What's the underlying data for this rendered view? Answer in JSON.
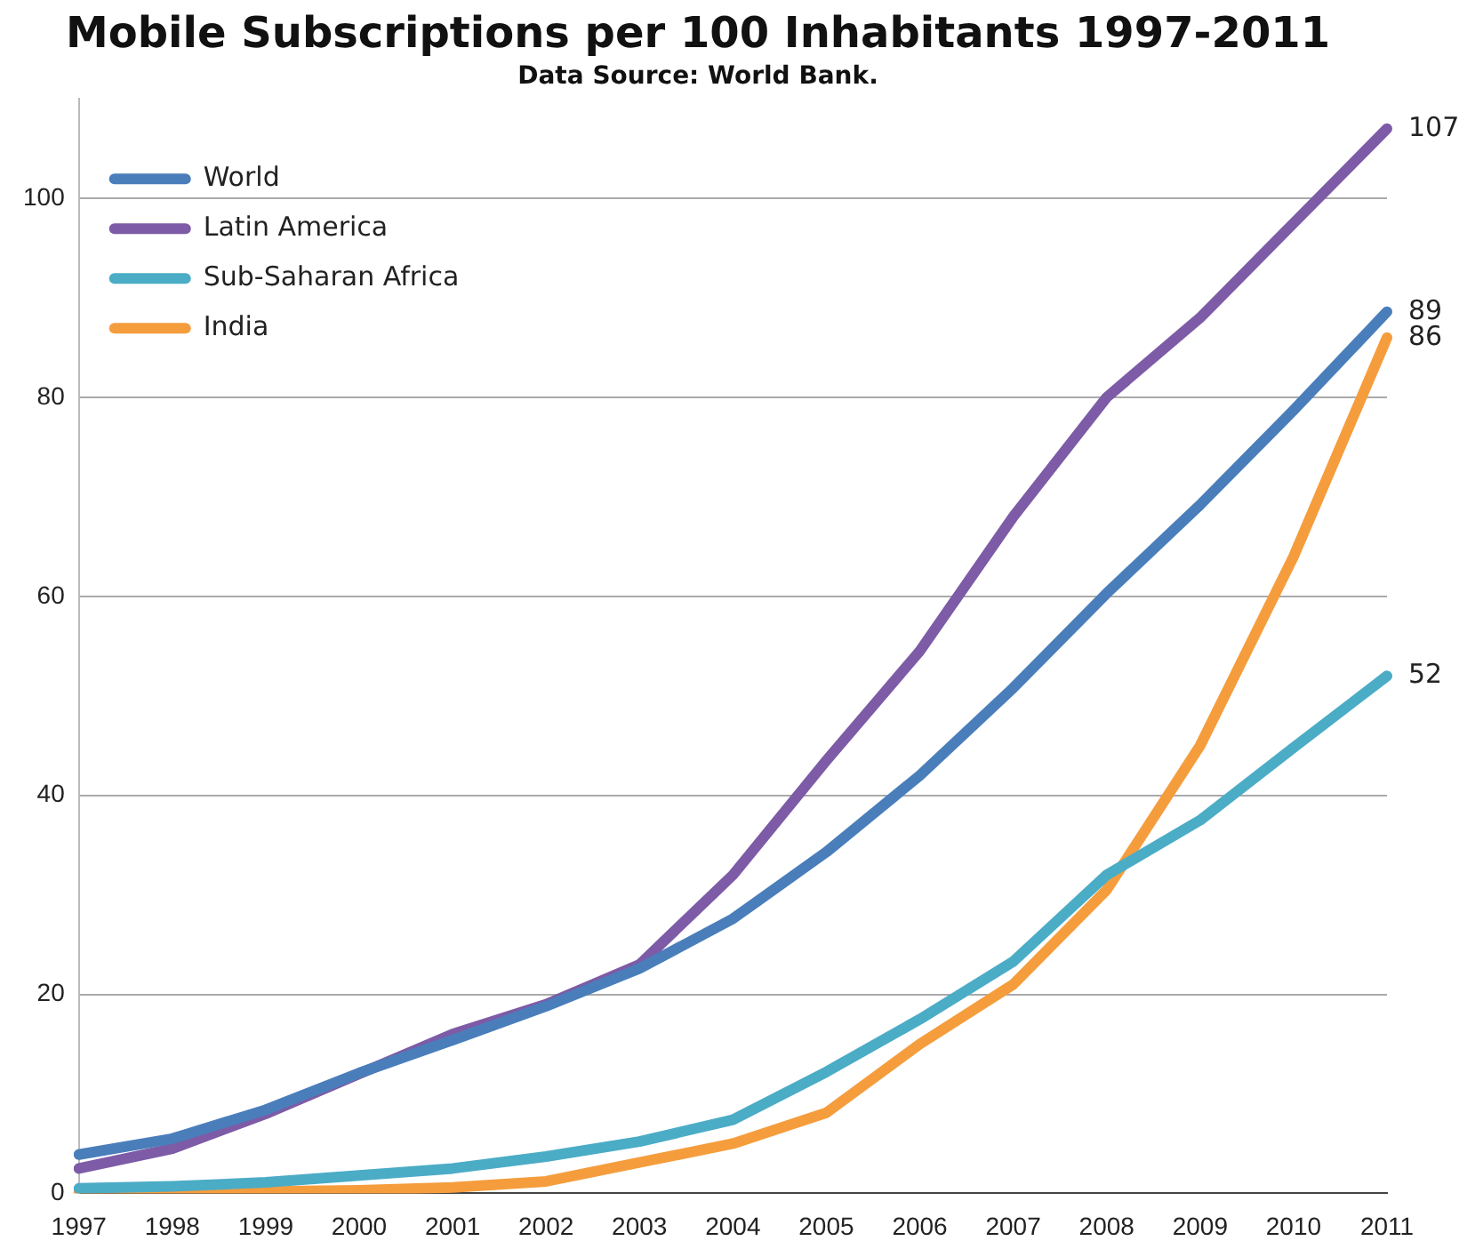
{
  "chart_data": {
    "type": "line",
    "title": "Mobile Subscriptions per 100 Inhabitants 1997-2011",
    "subtitle": "Data Source: World Bank.",
    "categories": [
      "1997",
      "1998",
      "1999",
      "2000",
      "2001",
      "2002",
      "2003",
      "2004",
      "2005",
      "2006",
      "2007",
      "2008",
      "2009",
      "2010",
      "2011"
    ],
    "series": [
      {
        "name": "World",
        "color": "#4a7ebb",
        "values": [
          3.9,
          5.5,
          8.4,
          12.1,
          15.4,
          18.8,
          22.6,
          27.6,
          34.3,
          42,
          50.8,
          60.3,
          69.2,
          78.7,
          88.6
        ],
        "value_labels": [
          null,
          null,
          null,
          null,
          null,
          null,
          null,
          null,
          null,
          null,
          null,
          null,
          null,
          null,
          "89"
        ]
      },
      {
        "name": "Latin America",
        "color": "#7d5ba6",
        "values": [
          2.5,
          4.5,
          8,
          12,
          16,
          19,
          23,
          32,
          43.5,
          54.5,
          68,
          80,
          88,
          97.5,
          107
        ],
        "value_labels": [
          null,
          null,
          null,
          null,
          null,
          null,
          null,
          null,
          null,
          null,
          null,
          null,
          null,
          null,
          "107"
        ]
      },
      {
        "name": "Sub-Saharan Africa",
        "color": "#4bacc6",
        "values": [
          0.5,
          0.7,
          1.1,
          1.8,
          2.5,
          3.7,
          5.2,
          7.4,
          12.2,
          17.5,
          23.3,
          32,
          37.5,
          44.8,
          52
        ],
        "value_labels": [
          null,
          null,
          null,
          null,
          null,
          null,
          null,
          null,
          null,
          null,
          null,
          null,
          null,
          null,
          "52"
        ]
      },
      {
        "name": "India",
        "color": "#f59d3d",
        "values": [
          0.1,
          0.1,
          0.2,
          0.3,
          0.6,
          1.2,
          3.1,
          5,
          8.1,
          15,
          21,
          30.5,
          45,
          64,
          86
        ],
        "value_labels": [
          null,
          null,
          null,
          null,
          null,
          null,
          null,
          null,
          null,
          null,
          null,
          null,
          null,
          null,
          "86"
        ]
      }
    ],
    "ylim": [
      0,
      110
    ],
    "yticks": [
      0,
      20,
      40,
      60,
      80,
      100
    ],
    "grid": "y",
    "legend": "top left",
    "marker": "none",
    "line_style": "solid"
  }
}
